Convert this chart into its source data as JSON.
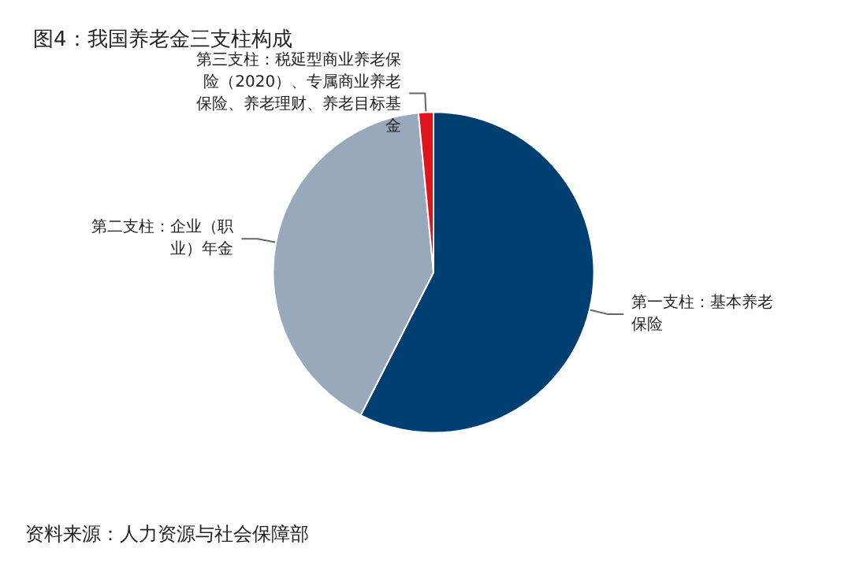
{
  "chart_data": {
    "type": "pie",
    "title": "图4：我国养老金三支柱构成",
    "categories": [
      "第一支柱：基本养老保险",
      "第二支柱：企业（职业）年金",
      "第三支柱：税延型商业养老保险（2020）、专属商业养老保险、养老理财、养老目标基金"
    ],
    "values": [
      57.5,
      41,
      1.5
    ],
    "colors": [
      "#003f72",
      "#97a9ba",
      "#e0141c"
    ],
    "annotations": [
      "资料来源：人力资源与社会保障部"
    ]
  }
}
